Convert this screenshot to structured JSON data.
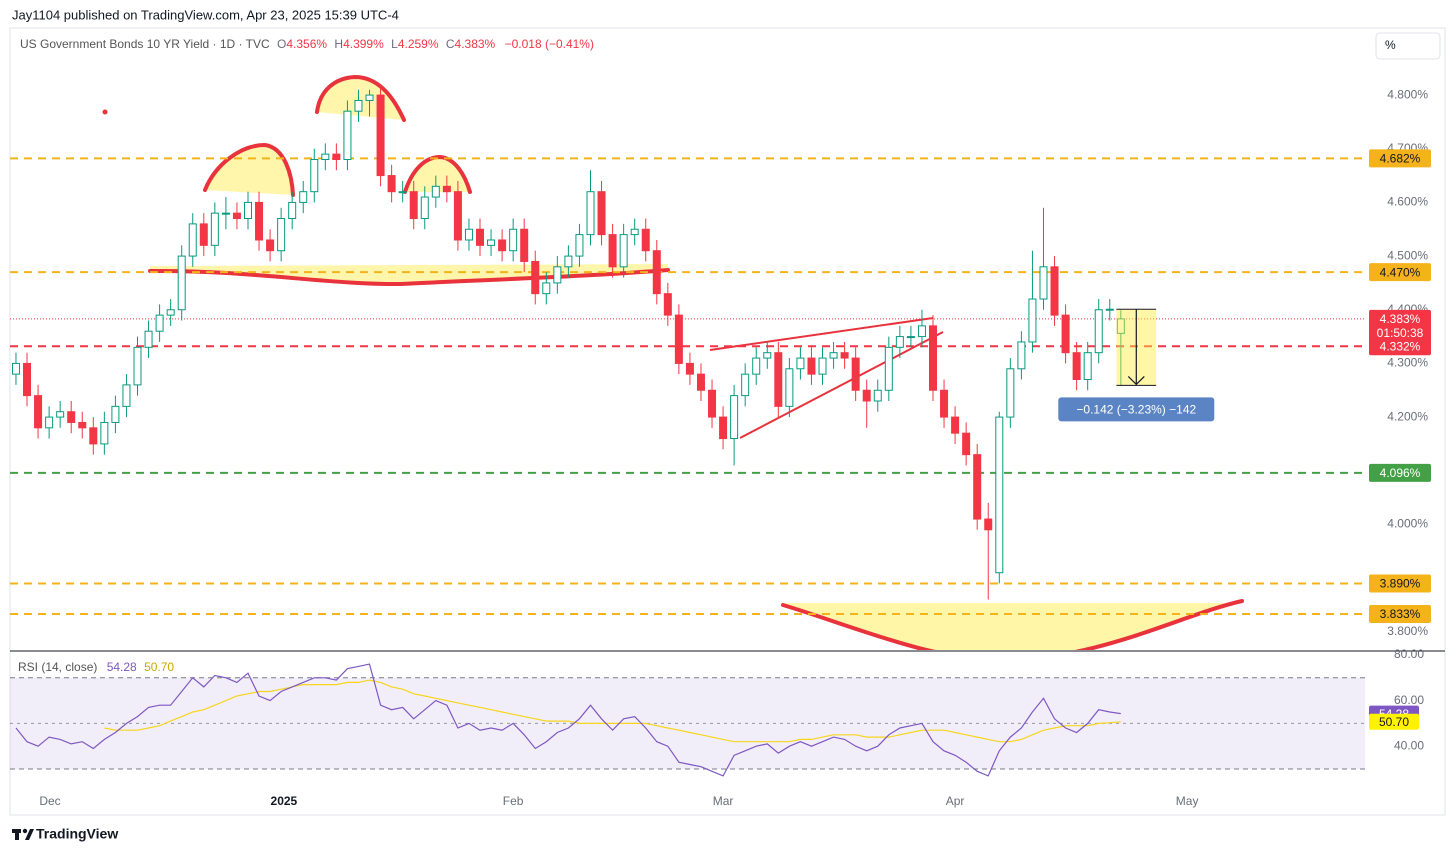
{
  "header": {
    "publisher": "Jay1104 published on TradingView.com, Apr 23, 2025 15:39 UTC-4",
    "scale_button": "%",
    "footer": "TradingView"
  },
  "chart_data": [
    {
      "type": "candlestick",
      "title": "US Government Bonds 10 YR Yield · 1D · TVC",
      "legend_values": [
        {
          "key": "O",
          "text": "4.356%"
        },
        {
          "key": "H",
          "text": "4.399%"
        },
        {
          "key": "L",
          "text": "4.259%"
        },
        {
          "key": "C",
          "text": "4.383%"
        }
      ],
      "change": "−0.018 (−0.41%)",
      "up_color": "#089981",
      "down_color": "#f23645",
      "candles": [
        [
          4.28,
          4.32,
          4.26,
          4.3
        ],
        [
          4.3,
          4.32,
          4.22,
          4.24
        ],
        [
          4.24,
          4.26,
          4.16,
          4.18
        ],
        [
          4.18,
          4.22,
          4.16,
          4.2
        ],
        [
          4.2,
          4.23,
          4.18,
          4.21
        ],
        [
          4.21,
          4.23,
          4.17,
          4.19
        ],
        [
          4.19,
          4.21,
          4.16,
          4.18
        ],
        [
          4.18,
          4.2,
          4.13,
          4.15
        ],
        [
          4.15,
          4.21,
          4.13,
          4.19
        ],
        [
          4.19,
          4.24,
          4.17,
          4.22
        ],
        [
          4.22,
          4.28,
          4.2,
          4.26
        ],
        [
          4.26,
          4.35,
          4.24,
          4.33
        ],
        [
          4.33,
          4.38,
          4.31,
          4.36
        ],
        [
          4.36,
          4.41,
          4.34,
          4.39
        ],
        [
          4.39,
          4.42,
          4.37,
          4.4
        ],
        [
          4.4,
          4.52,
          4.38,
          4.5
        ],
        [
          4.5,
          4.58,
          4.48,
          4.56
        ],
        [
          4.56,
          4.58,
          4.5,
          4.52
        ],
        [
          4.52,
          4.6,
          4.5,
          4.58
        ],
        [
          4.58,
          4.61,
          4.55,
          4.58
        ],
        [
          4.58,
          4.6,
          4.55,
          4.57
        ],
        [
          4.57,
          4.62,
          4.55,
          4.6
        ],
        [
          4.6,
          4.62,
          4.51,
          4.53
        ],
        [
          4.53,
          4.55,
          4.49,
          4.51
        ],
        [
          4.51,
          4.59,
          4.49,
          4.57
        ],
        [
          4.57,
          4.62,
          4.55,
          4.6
        ],
        [
          4.6,
          4.64,
          4.58,
          4.62
        ],
        [
          4.62,
          4.7,
          4.6,
          4.68
        ],
        [
          4.68,
          4.71,
          4.66,
          4.69
        ],
        [
          4.69,
          4.71,
          4.66,
          4.68
        ],
        [
          4.68,
          4.79,
          4.66,
          4.77
        ],
        [
          4.77,
          4.81,
          4.75,
          4.79
        ],
        [
          4.79,
          4.81,
          4.76,
          4.8
        ],
        [
          4.8,
          4.82,
          4.63,
          4.65
        ],
        [
          4.65,
          4.67,
          4.6,
          4.62
        ],
        [
          4.62,
          4.64,
          4.6,
          4.62
        ],
        [
          4.62,
          4.64,
          4.55,
          4.57
        ],
        [
          4.57,
          4.63,
          4.55,
          4.61
        ],
        [
          4.61,
          4.65,
          4.59,
          4.63
        ],
        [
          4.63,
          4.65,
          4.6,
          4.62
        ],
        [
          4.62,
          4.64,
          4.51,
          4.53
        ],
        [
          4.53,
          4.57,
          4.51,
          4.55
        ],
        [
          4.55,
          4.57,
          4.5,
          4.52
        ],
        [
          4.52,
          4.55,
          4.5,
          4.53
        ],
        [
          4.53,
          4.55,
          4.49,
          4.51
        ],
        [
          4.51,
          4.57,
          4.49,
          4.55
        ],
        [
          4.55,
          4.57,
          4.47,
          4.49
        ],
        [
          4.49,
          4.51,
          4.41,
          4.43
        ],
        [
          4.43,
          4.47,
          4.41,
          4.45
        ],
        [
          4.45,
          4.5,
          4.43,
          4.48
        ],
        [
          4.48,
          4.52,
          4.46,
          4.5
        ],
        [
          4.5,
          4.56,
          4.48,
          4.54
        ],
        [
          4.54,
          4.66,
          4.52,
          4.62
        ],
        [
          4.62,
          4.64,
          4.52,
          4.54
        ],
        [
          4.54,
          4.56,
          4.46,
          4.48
        ],
        [
          4.48,
          4.56,
          4.46,
          4.54
        ],
        [
          4.54,
          4.57,
          4.52,
          4.55
        ],
        [
          4.55,
          4.57,
          4.49,
          4.51
        ],
        [
          4.51,
          4.53,
          4.41,
          4.43
        ],
        [
          4.43,
          4.45,
          4.37,
          4.39
        ],
        [
          4.39,
          4.41,
          4.28,
          4.3
        ],
        [
          4.3,
          4.32,
          4.26,
          4.28
        ],
        [
          4.28,
          4.3,
          4.23,
          4.25
        ],
        [
          4.25,
          4.27,
          4.18,
          4.2
        ],
        [
          4.2,
          4.22,
          4.14,
          4.16
        ],
        [
          4.16,
          4.26,
          4.11,
          4.24
        ],
        [
          4.24,
          4.3,
          4.22,
          4.28
        ],
        [
          4.28,
          4.33,
          4.26,
          4.31
        ],
        [
          4.31,
          4.34,
          4.29,
          4.32
        ],
        [
          4.32,
          4.34,
          4.2,
          4.22
        ],
        [
          4.22,
          4.31,
          4.2,
          4.29
        ],
        [
          4.29,
          4.33,
          4.27,
          4.31
        ],
        [
          4.31,
          4.33,
          4.26,
          4.28
        ],
        [
          4.28,
          4.33,
          4.26,
          4.31
        ],
        [
          4.31,
          4.34,
          4.29,
          4.32
        ],
        [
          4.32,
          4.34,
          4.29,
          4.31
        ],
        [
          4.31,
          4.33,
          4.23,
          4.25
        ],
        [
          4.25,
          4.27,
          4.18,
          4.23
        ],
        [
          4.23,
          4.27,
          4.21,
          4.25
        ],
        [
          4.25,
          4.35,
          4.23,
          4.33
        ],
        [
          4.33,
          4.37,
          4.31,
          4.35
        ],
        [
          4.35,
          4.37,
          4.33,
          4.35
        ],
        [
          4.35,
          4.4,
          4.33,
          4.37
        ],
        [
          4.37,
          4.39,
          4.23,
          4.25
        ],
        [
          4.25,
          4.27,
          4.18,
          4.2
        ],
        [
          4.2,
          4.22,
          4.15,
          4.17
        ],
        [
          4.17,
          4.19,
          4.11,
          4.13
        ],
        [
          4.13,
          4.15,
          3.99,
          4.01
        ],
        [
          4.01,
          4.04,
          3.86,
          3.99
        ],
        [
          3.91,
          4.21,
          3.89,
          4.2
        ],
        [
          4.2,
          4.31,
          4.18,
          4.29
        ],
        [
          4.29,
          4.36,
          4.27,
          4.34
        ],
        [
          4.34,
          4.51,
          4.32,
          4.42
        ],
        [
          4.42,
          4.59,
          4.4,
          4.48
        ],
        [
          4.48,
          4.5,
          4.37,
          4.39
        ],
        [
          4.39,
          4.41,
          4.3,
          4.32
        ],
        [
          4.32,
          4.34,
          4.25,
          4.27
        ],
        [
          4.27,
          4.34,
          4.25,
          4.32
        ],
        [
          4.32,
          4.42,
          4.3,
          4.4
        ],
        [
          4.4,
          4.42,
          4.38,
          4.401
        ],
        [
          4.356,
          4.399,
          4.259,
          4.383
        ]
      ],
      "xlim": [
        -0.54,
        122.1
      ],
      "xticks": [
        {
          "value": 3.08,
          "label": "Dec"
        },
        {
          "value": 24.25,
          "label": "2025"
        },
        {
          "value": 45.0,
          "label": "Feb"
        },
        {
          "value": 64.0,
          "label": "Mar"
        },
        {
          "value": 85.0,
          "label": "Apr"
        },
        {
          "value": 106.0,
          "label": "May"
        }
      ],
      "ylim": [
        3.766,
        4.925
      ],
      "yticks": [
        {
          "value": 4.8,
          "label": "4.800%"
        },
        {
          "value": 4.7,
          "label": "4.700%"
        },
        {
          "value": 4.6,
          "label": "4.600%"
        },
        {
          "value": 4.5,
          "label": "4.500%"
        },
        {
          "value": 4.4,
          "label": "4.400%"
        },
        {
          "value": 4.3,
          "label": "4.300%"
        },
        {
          "value": 4.2,
          "label": "4.200%"
        },
        {
          "value": 4.0,
          "label": "4.000%"
        },
        {
          "value": 3.8,
          "label": "3.800%"
        }
      ],
      "levels": [
        {
          "value": 4.682,
          "label": "4.682%",
          "color": "#f5b31b",
          "text_color": "#131722"
        },
        {
          "value": 4.47,
          "label": "4.470%",
          "color": "#f5b31b",
          "text_color": "#131722"
        },
        {
          "value": 4.332,
          "label": "4.332%",
          "color": "#f23645",
          "text_color": "#ffffff"
        },
        {
          "value": 4.096,
          "label": "4.096%",
          "color": "#43a047",
          "text_color": "#ffffff"
        },
        {
          "value": 3.89,
          "label": "3.890%",
          "color": "#f5b31b",
          "text_color": "#131722"
        },
        {
          "value": 3.833,
          "label": "3.833%",
          "color": "#f5b31b",
          "text_color": "#131722"
        }
      ],
      "last": {
        "value": 4.383,
        "label": "4.383%",
        "countdown": "01:50:38",
        "color": "#f23645"
      },
      "measure": {
        "from": 4.401,
        "to": 4.259,
        "label": "−0.142 (−3.23%) −142"
      }
    },
    {
      "type": "line",
      "title": "RSI (14, close)",
      "legend_labels": [
        "54.28",
        "50.70"
      ],
      "series": [
        {
          "color": "#7e57c2",
          "values": [
            48,
            42,
            40,
            44,
            43,
            41,
            42,
            39,
            43,
            46,
            50,
            53,
            57,
            58,
            58,
            64,
            70,
            66,
            71,
            70,
            68,
            72,
            62,
            60,
            64,
            66,
            68,
            70,
            70,
            69,
            74,
            75,
            76,
            58,
            56,
            57,
            52,
            56,
            60,
            58,
            48,
            50,
            47,
            48,
            47,
            50,
            45,
            39,
            42,
            46,
            48,
            52,
            58,
            52,
            47,
            52,
            53,
            48,
            42,
            40,
            33,
            32,
            31,
            29,
            27,
            36,
            38,
            40,
            41,
            37,
            40,
            42,
            40,
            42,
            44,
            43,
            40,
            38,
            40,
            45,
            48,
            49,
            50,
            42,
            38,
            36,
            33,
            29,
            27,
            38,
            44,
            48,
            55,
            61,
            52,
            48,
            46,
            50,
            56,
            55,
            54.28
          ]
        },
        {
          "color": "#f7d51d",
          "values": [
            null,
            null,
            null,
            null,
            null,
            null,
            null,
            null,
            48,
            47,
            47,
            47,
            48,
            49,
            51,
            53,
            55,
            56,
            58,
            60,
            62,
            63,
            64,
            64,
            65,
            66,
            67,
            67,
            67,
            67,
            68,
            68,
            69,
            68,
            66,
            65,
            63,
            62,
            61,
            60,
            59,
            58,
            57,
            56,
            55,
            54,
            53,
            52,
            51,
            51,
            51,
            50,
            50,
            50,
            50,
            50,
            50,
            50,
            49,
            48,
            47,
            46,
            45,
            44,
            43,
            42,
            42,
            42,
            42,
            42,
            42,
            43,
            43,
            44,
            45,
            45,
            45,
            44,
            44,
            44,
            45,
            46,
            47,
            47,
            47,
            46,
            45,
            44,
            43,
            42,
            42,
            43,
            45,
            47,
            48,
            49,
            49,
            49,
            50,
            50.3,
            50.7
          ]
        }
      ],
      "ylim": [
        20.8,
        81.75
      ],
      "yticks": [
        {
          "value": 80,
          "label": "80.00"
        },
        {
          "value": 60,
          "label": "60.00"
        },
        {
          "value": 40,
          "label": "40.00"
        }
      ],
      "bands": [
        70,
        30
      ],
      "midline": 50,
      "band_color": "#7e57c2"
    }
  ]
}
